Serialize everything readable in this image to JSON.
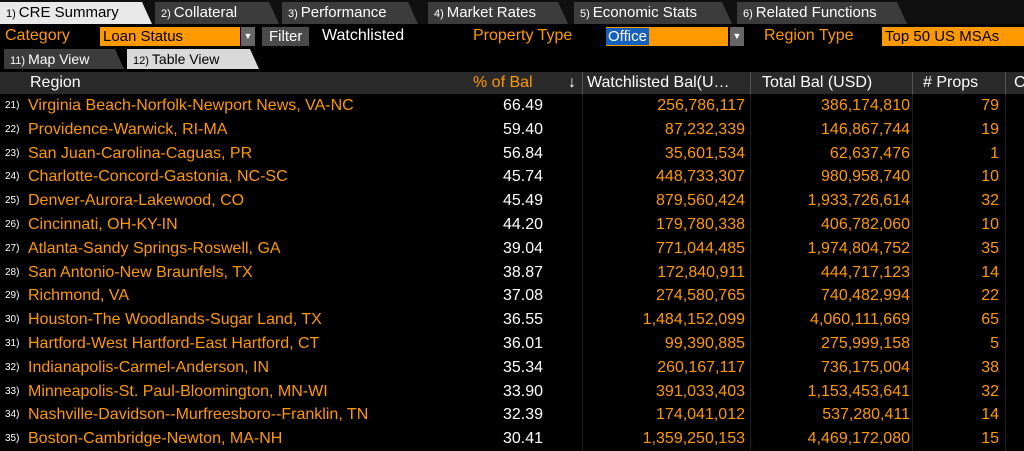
{
  "tabs": [
    {
      "num": "1)",
      "label": "CRE Summary"
    },
    {
      "num": "2)",
      "label": "Collateral"
    },
    {
      "num": "3)",
      "label": "Performance"
    },
    {
      "num": "4)",
      "label": "Market Rates"
    },
    {
      "num": "5)",
      "label": "Economic Stats"
    },
    {
      "num": "6)",
      "label": "Related Functions"
    }
  ],
  "params": {
    "category_label": "Category",
    "category_value": "Loan Status",
    "filter_button": "Filter",
    "filter_value": "Watchlisted",
    "property_type_label": "Property Type",
    "property_type_value": "Office",
    "region_type_label": "Region Type",
    "region_type_value": "Top 50 US MSAs"
  },
  "subtabs": [
    {
      "num": "11)",
      "label": "Map View"
    },
    {
      "num": "12)",
      "label": "Table View"
    }
  ],
  "columns": {
    "region": "Region",
    "pct_of_bal": "% of Bal",
    "sort_indicator": "↓",
    "watchlisted_bal": "Watchlisted Bal(U…",
    "total_bal": "Total Bal (USD)",
    "num_props": "# Props",
    "next_col": "C"
  },
  "rows": [
    {
      "n": "21)",
      "region": "Virginia Beach-Norfolk-Newport News, VA-NC",
      "pct": "66.49",
      "wb": "256,786,117",
      "tb": "386,174,810",
      "props": "79"
    },
    {
      "n": "22)",
      "region": "Providence-Warwick, RI-MA",
      "pct": "59.40",
      "wb": "87,232,339",
      "tb": "146,867,744",
      "props": "19"
    },
    {
      "n": "23)",
      "region": "San Juan-Carolina-Caguas, PR",
      "pct": "56.84",
      "wb": "35,601,534",
      "tb": "62,637,476",
      "props": "1"
    },
    {
      "n": "24)",
      "region": "Charlotte-Concord-Gastonia, NC-SC",
      "pct": "45.74",
      "wb": "448,733,307",
      "tb": "980,958,740",
      "props": "10"
    },
    {
      "n": "25)",
      "region": "Denver-Aurora-Lakewood, CO",
      "pct": "45.49",
      "wb": "879,560,424",
      "tb": "1,933,726,614",
      "props": "32"
    },
    {
      "n": "26)",
      "region": "Cincinnati, OH-KY-IN",
      "pct": "44.20",
      "wb": "179,780,338",
      "tb": "406,782,060",
      "props": "10"
    },
    {
      "n": "27)",
      "region": "Atlanta-Sandy Springs-Roswell, GA",
      "pct": "39.04",
      "wb": "771,044,485",
      "tb": "1,974,804,752",
      "props": "35"
    },
    {
      "n": "28)",
      "region": "San Antonio-New Braunfels, TX",
      "pct": "38.87",
      "wb": "172,840,911",
      "tb": "444,717,123",
      "props": "14"
    },
    {
      "n": "29)",
      "region": "Richmond, VA",
      "pct": "37.08",
      "wb": "274,580,765",
      "tb": "740,482,994",
      "props": "22"
    },
    {
      "n": "30)",
      "region": "Houston-The Woodlands-Sugar Land, TX",
      "pct": "36.55",
      "wb": "1,484,152,099",
      "tb": "4,060,111,669",
      "props": "65"
    },
    {
      "n": "31)",
      "region": "Hartford-West Hartford-East Hartford, CT",
      "pct": "36.01",
      "wb": "99,390,885",
      "tb": "275,999,158",
      "props": "5"
    },
    {
      "n": "32)",
      "region": "Indianapolis-Carmel-Anderson, IN",
      "pct": "35.34",
      "wb": "260,167,117",
      "tb": "736,175,004",
      "props": "38"
    },
    {
      "n": "33)",
      "region": "Minneapolis-St. Paul-Bloomington, MN-WI",
      "pct": "33.90",
      "wb": "391,033,403",
      "tb": "1,153,453,641",
      "props": "32"
    },
    {
      "n": "34)",
      "region": "Nashville-Davidson--Murfreesboro--Franklin, TN",
      "pct": "32.39",
      "wb": "174,041,012",
      "tb": "537,280,411",
      "props": "14"
    },
    {
      "n": "35)",
      "region": "Boston-Cambridge-Newton, MA-NH",
      "pct": "30.41",
      "wb": "1,359,250,153",
      "tb": "4,469,172,080",
      "props": "15"
    }
  ],
  "colors": {
    "accent": "#ff9900",
    "header_bg": "#2a2a2a",
    "selection": "#1560bd"
  }
}
